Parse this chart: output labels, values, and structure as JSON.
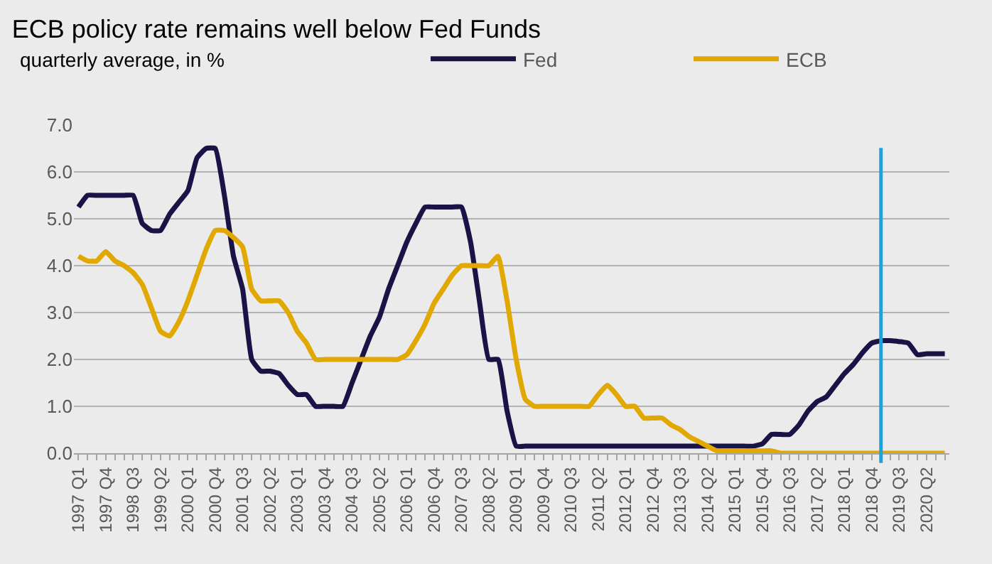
{
  "chart_data": {
    "type": "line",
    "title": "ECB policy rate remains well below Fed Funds",
    "subtitle": "quarterly average, in %",
    "categories": [
      "1997 Q1",
      null,
      null,
      "1997 Q4",
      null,
      null,
      "1998 Q3",
      null,
      null,
      "1999 Q2",
      null,
      null,
      "2000 Q1",
      null,
      null,
      "2000 Q4",
      null,
      null,
      "2001 Q3",
      null,
      null,
      "2002 Q2",
      null,
      null,
      "2003 Q1",
      null,
      null,
      "2003 Q4",
      null,
      null,
      "2004 Q3",
      null,
      null,
      "2005 Q2",
      null,
      null,
      "2006 Q1",
      null,
      null,
      "2006 Q4",
      null,
      null,
      "2007 Q3",
      null,
      null,
      "2008 Q2",
      null,
      null,
      "2009 Q1",
      null,
      null,
      "2009 Q4",
      null,
      null,
      "2010 Q3",
      null,
      null,
      "2011 Q2",
      null,
      null,
      "2012 Q1",
      null,
      null,
      "2012 Q4",
      null,
      null,
      "2013 Q3",
      null,
      null,
      "2014 Q2",
      null,
      null,
      "2015 Q1",
      null,
      null,
      "2015 Q4",
      null,
      null,
      "2016 Q3",
      null,
      null,
      "2017 Q2",
      null,
      null,
      "2018 Q1",
      null,
      null,
      "2018 Q4",
      null,
      null,
      "2019 Q3",
      null,
      null,
      "2020 Q2",
      null,
      null
    ],
    "series": [
      {
        "name": "Fed",
        "color": "#1a1446",
        "values": [
          5.25,
          5.5,
          5.5,
          5.5,
          5.5,
          5.5,
          5.5,
          4.9,
          4.75,
          4.75,
          5.1,
          5.35,
          5.6,
          6.3,
          6.5,
          6.5,
          5.5,
          4.2,
          3.5,
          2.0,
          1.75,
          1.75,
          1.7,
          1.45,
          1.25,
          1.25,
          1.0,
          1.0,
          1.0,
          1.0,
          1.5,
          2.0,
          2.5,
          2.9,
          3.5,
          4.0,
          4.5,
          4.9,
          5.25,
          5.25,
          5.25,
          5.25,
          5.25,
          4.5,
          3.2,
          2.0,
          2.0,
          0.9,
          0.15,
          0.15,
          0.15,
          0.15,
          0.15,
          0.15,
          0.15,
          0.15,
          0.15,
          0.15,
          0.15,
          0.15,
          0.15,
          0.15,
          0.15,
          0.15,
          0.15,
          0.15,
          0.15,
          0.15,
          0.15,
          0.15,
          0.15,
          0.15,
          0.15,
          0.15,
          0.15,
          0.2,
          0.4,
          0.4,
          0.4,
          0.6,
          0.9,
          1.1,
          1.2,
          1.45,
          1.7,
          1.9,
          2.15,
          2.35,
          2.4,
          2.4,
          2.38,
          2.35,
          2.1,
          2.12,
          2.12,
          2.12
        ]
      },
      {
        "name": "ECB",
        "color": "#e0a800",
        "values": [
          4.2,
          4.1,
          4.1,
          4.3,
          4.1,
          4.0,
          3.85,
          3.6,
          3.1,
          2.6,
          2.5,
          2.8,
          3.25,
          3.8,
          4.35,
          4.75,
          4.75,
          4.6,
          4.4,
          3.5,
          3.25,
          3.25,
          3.25,
          3.0,
          2.6,
          2.35,
          2.0,
          2.0,
          2.0,
          2.0,
          2.0,
          2.0,
          2.0,
          2.0,
          2.0,
          2.0,
          2.1,
          2.4,
          2.75,
          3.2,
          3.5,
          3.8,
          4.0,
          4.0,
          4.0,
          4.0,
          4.2,
          3.25,
          2.0,
          1.15,
          1.0,
          1.0,
          1.0,
          1.0,
          1.0,
          1.0,
          1.0,
          1.25,
          1.45,
          1.25,
          1.0,
          1.0,
          0.75,
          0.75,
          0.75,
          0.6,
          0.5,
          0.35,
          0.25,
          0.15,
          0.05,
          0.05,
          0.05,
          0.05,
          0.05,
          0.05,
          0.05,
          0.0,
          0.0,
          0.0,
          0.0,
          0.0,
          0.0,
          0.0,
          0.0,
          0.0,
          0.0,
          0.0,
          0.0,
          0.0,
          0.0,
          0.0,
          0.0,
          0.0,
          0.0,
          0.0
        ]
      }
    ],
    "ylim": [
      0,
      7
    ],
    "yticks": [
      {
        "value": 0,
        "label": "0.0"
      },
      {
        "value": 1,
        "label": "1.0"
      },
      {
        "value": 2,
        "label": "2.0"
      },
      {
        "value": 3,
        "label": "3.0"
      },
      {
        "value": 4,
        "label": "4.0"
      },
      {
        "value": 5,
        "label": "5.0"
      },
      {
        "value": 6,
        "label": "6.0"
      },
      {
        "value": 7,
        "label": "7.0"
      }
    ],
    "grid": "y",
    "legend": "top right",
    "marker": "none",
    "line_style": "solid"
  }
}
